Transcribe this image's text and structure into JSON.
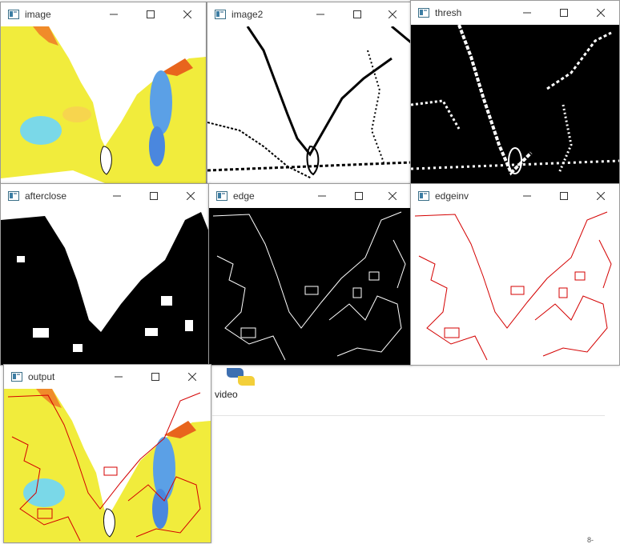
{
  "windows": [
    {
      "id": "image",
      "title": "image"
    },
    {
      "id": "image2",
      "title": "image2"
    },
    {
      "id": "thresh",
      "title": "thresh"
    },
    {
      "id": "afterclose",
      "title": "afterclose"
    },
    {
      "id": "edge",
      "title": "edge"
    },
    {
      "id": "edgeinv",
      "title": "edgeinv"
    },
    {
      "id": "output",
      "title": "output"
    }
  ],
  "background": {
    "file_label": "video",
    "tray_text": "8-"
  },
  "icons": {
    "app": "opencv-window-icon",
    "minimize": "minimize-icon",
    "maximize": "maximize-icon",
    "close": "close-icon",
    "python": "python-icon"
  },
  "colors": {
    "edge_red": "#d40000",
    "map_yellow": "#f2ea22",
    "map_cyan": "#57d6e6",
    "map_blue": "#2d6fd6"
  }
}
